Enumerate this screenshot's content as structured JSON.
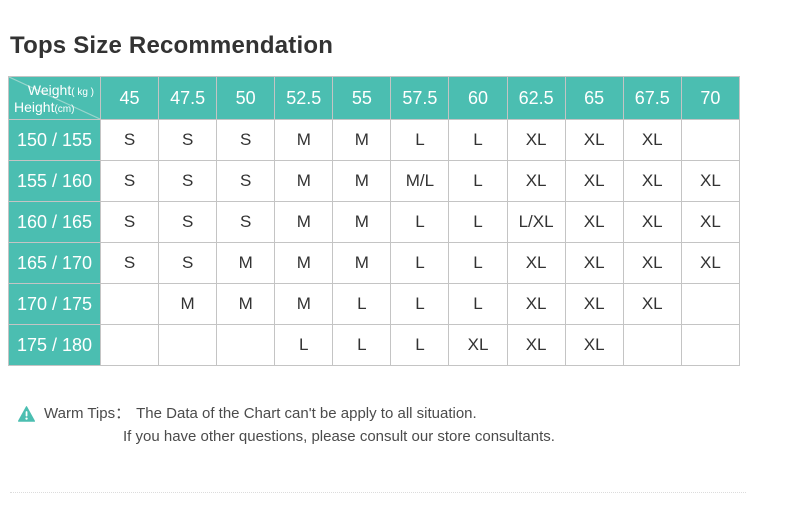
{
  "title": "Tops Size Recommendation",
  "colors": {
    "teal": "#4BBEB1",
    "s_bg": "#FCFCE8",
    "m_bg": "#EFF9E8",
    "l_bg": "#E8F1FA",
    "xl_bg": "#FCE9EA",
    "border": "#C4C4C4",
    "cell_text": "#333333",
    "tips_text": "#4B4B4B"
  },
  "corner": {
    "top_label": "Weight",
    "top_unit": "( kg )",
    "bottom_label": "Height",
    "bottom_unit": "(cm)"
  },
  "chart_data": {
    "type": "table",
    "title": "Tops Size Recommendation",
    "x_axis_label": "Weight (kg)",
    "y_axis_label": "Height (cm)",
    "columns": [
      "45",
      "47.5",
      "50",
      "52.5",
      "55",
      "57.5",
      "60",
      "62.5",
      "65",
      "67.5",
      "70"
    ],
    "rows": [
      {
        "height_range": "150 / 155",
        "sizes": [
          "S",
          "S",
          "S",
          "M",
          "M",
          "L",
          "L",
          "XL",
          "XL",
          "XL",
          ""
        ]
      },
      {
        "height_range": "155 / 160",
        "sizes": [
          "S",
          "S",
          "S",
          "M",
          "M",
          "M/L",
          "L",
          "XL",
          "XL",
          "XL",
          "XL"
        ]
      },
      {
        "height_range": "160 / 165",
        "sizes": [
          "S",
          "S",
          "S",
          "M",
          "M",
          "L",
          "L",
          "L/XL",
          "XL",
          "XL",
          "XL"
        ]
      },
      {
        "height_range": "165 / 170",
        "sizes": [
          "S",
          "S",
          "M",
          "M",
          "M",
          "L",
          "L",
          "XL",
          "XL",
          "XL",
          "XL"
        ]
      },
      {
        "height_range": "170 / 175",
        "sizes": [
          "",
          "M",
          "M",
          "M",
          "L",
          "L",
          "L",
          "XL",
          "XL",
          "XL",
          ""
        ]
      },
      {
        "height_range": "175 / 180",
        "sizes": [
          "",
          "",
          "",
          "L",
          "L",
          "L",
          "XL",
          "XL",
          "XL",
          "",
          ""
        ]
      }
    ],
    "size_color_legend": {
      "S": "#FCFCE8",
      "M": "#EFF9E8",
      "L": "#E8F1FA",
      "XL": "#FCE9EA",
      "empty": "#FFFFFF"
    }
  },
  "tips": {
    "label": "Warm Tips：",
    "line1": "The Data of the Chart can't be apply to all situation.",
    "line2": "If you have other questions, please consult our store consultants."
  }
}
